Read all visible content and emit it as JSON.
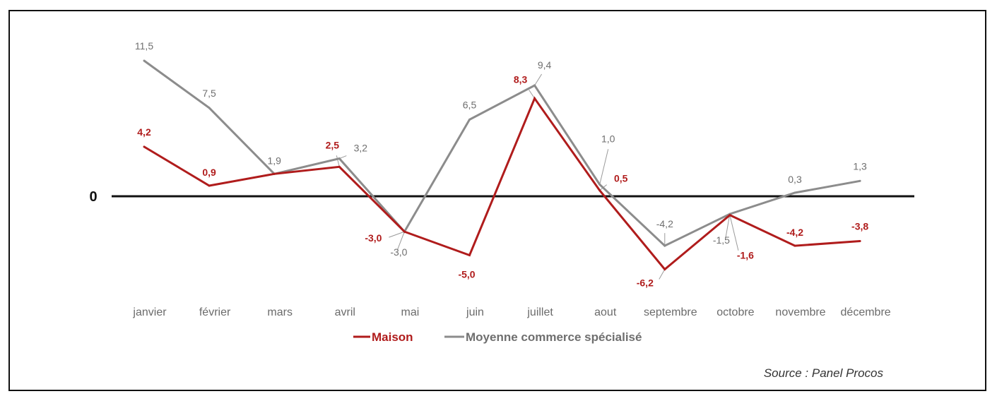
{
  "colors": {
    "maison": "#b01c1c",
    "moyenne": "#8c8c8c",
    "zero_line": "#111111",
    "label_moyenne": "#6f6f6f"
  },
  "chart_data": {
    "type": "line",
    "categories": [
      "janvier",
      "février",
      "mars",
      "avril",
      "mai",
      "juin",
      "juillet",
      "aout",
      "septembre",
      "octobre",
      "novembre",
      "décembre"
    ],
    "series": [
      {
        "name": "Maison",
        "values": [
          4.2,
          0.9,
          1.9,
          2.5,
          -3.0,
          -5.0,
          8.3,
          0.5,
          -6.2,
          -1.6,
          -4.2,
          -3.8
        ],
        "labels": [
          "4,2",
          "0,9",
          "",
          "2,5",
          "-3,0",
          "-5,0",
          "8,3",
          "0,5",
          "-6,2",
          "-1,6",
          "-4,2",
          "-3,8"
        ]
      },
      {
        "name": "Moyenne commerce spécialisé",
        "values": [
          11.5,
          7.5,
          1.9,
          3.2,
          -3.0,
          6.5,
          9.4,
          1.0,
          -4.2,
          -1.5,
          0.3,
          1.3
        ],
        "labels": [
          "11,5",
          "7,5",
          "1,9",
          "3,2",
          "-3,0",
          "6,5",
          "9,4",
          "1,0",
          "-4,2",
          "-1,5",
          "0,3",
          "1,3"
        ]
      }
    ],
    "zero_label": "0",
    "grid": false,
    "legend_position": "bottom-center"
  },
  "source": "Source : Panel Procos"
}
